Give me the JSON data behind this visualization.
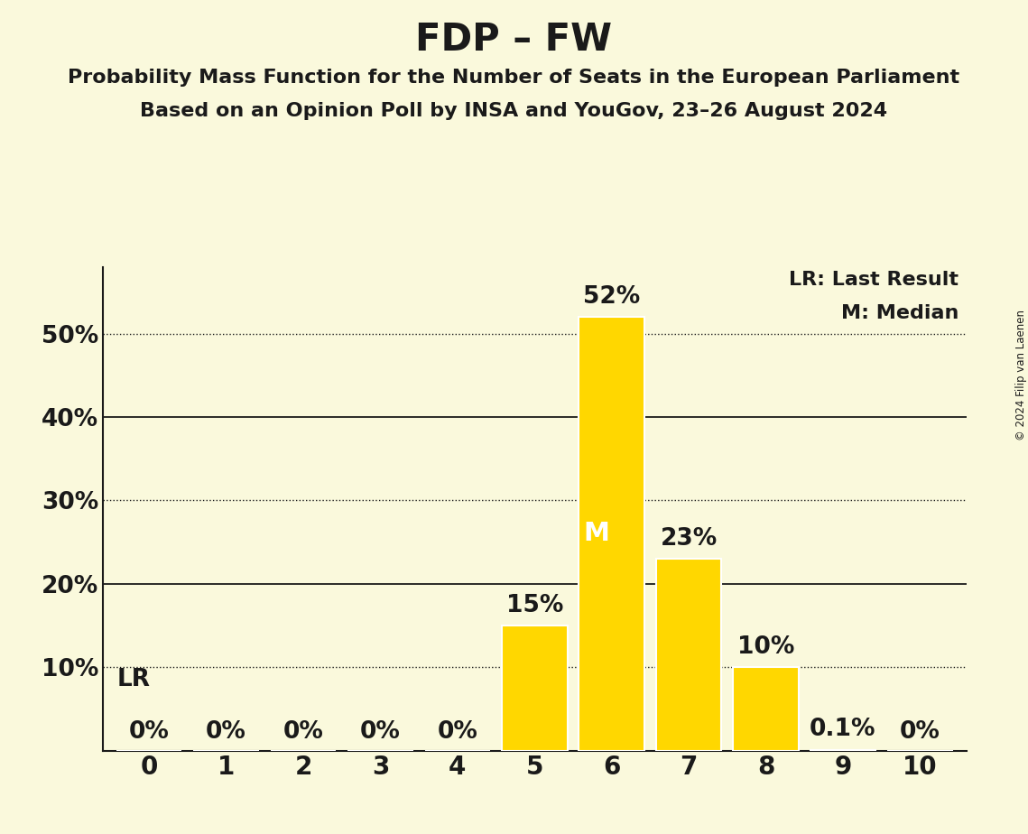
{
  "title": "FDP – FW",
  "subtitle1": "Probability Mass Function for the Number of Seats in the European Parliament",
  "subtitle2": "Based on an Opinion Poll by INSA and YouGov, 23–26 August 2024",
  "copyright": "© 2024 Filip van Laenen",
  "categories": [
    0,
    1,
    2,
    3,
    4,
    5,
    6,
    7,
    8,
    9,
    10
  ],
  "values": [
    0.0,
    0.0,
    0.0,
    0.0,
    0.0,
    15.0,
    52.0,
    23.0,
    10.0,
    0.1,
    0.0
  ],
  "bar_color": "#FFD700",
  "background_color": "#FAF9DC",
  "text_color": "#1a1a1a",
  "ytick_positions": [
    0,
    10,
    20,
    30,
    40,
    50
  ],
  "ytick_labels": [
    "",
    "10%",
    "20%",
    "30%",
    "40%",
    "50%"
  ],
  "ylim": [
    0,
    58
  ],
  "solid_grid_lines": [
    20,
    40
  ],
  "dotted_grid_lines": [
    10,
    30,
    50
  ],
  "median_seat": 6,
  "lr_seat": 4,
  "lr_label": "LR",
  "median_label": "M",
  "legend_lr": "LR: Last Result",
  "legend_m": "M: Median",
  "bar_labels": {
    "0": "0%",
    "1": "0%",
    "2": "0%",
    "3": "0%",
    "4": "0%",
    "5": "15%",
    "6": "52%",
    "7": "23%",
    "8": "10%",
    "9": "0.1%",
    "10": "0%"
  },
  "bar_label_above_color": "#1a1a1a",
  "bar_label_inside_color": "#ffffff",
  "title_fontsize": 30,
  "subtitle_fontsize": 16,
  "bar_label_fontsize": 19,
  "legend_fontsize": 16,
  "ytick_fontsize": 19,
  "xtick_fontsize": 20,
  "lr_fontsize": 19
}
